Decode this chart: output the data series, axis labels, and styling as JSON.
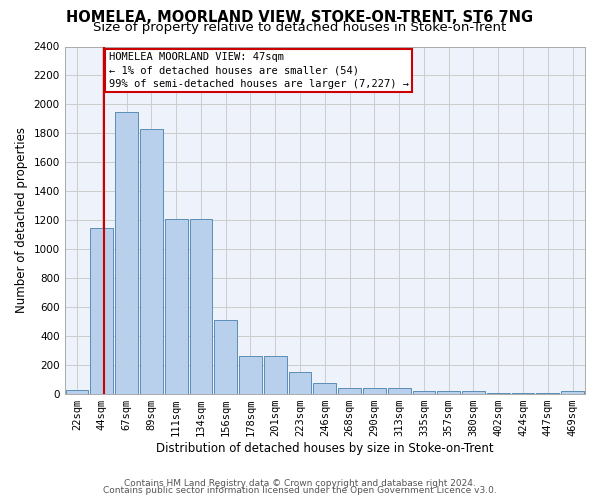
{
  "title1": "HOMELEA, MOORLAND VIEW, STOKE-ON-TRENT, ST6 7NG",
  "title2": "Size of property relative to detached houses in Stoke-on-Trent",
  "xlabel": "Distribution of detached houses by size in Stoke-on-Trent",
  "ylabel": "Number of detached properties",
  "categories": [
    "22sqm",
    "44sqm",
    "67sqm",
    "89sqm",
    "111sqm",
    "134sqm",
    "156sqm",
    "178sqm",
    "201sqm",
    "223sqm",
    "246sqm",
    "268sqm",
    "290sqm",
    "313sqm",
    "335sqm",
    "357sqm",
    "380sqm",
    "402sqm",
    "424sqm",
    "447sqm",
    "469sqm"
  ],
  "values": [
    30,
    1150,
    1950,
    1830,
    1210,
    1210,
    510,
    265,
    265,
    155,
    75,
    45,
    40,
    40,
    18,
    18,
    20,
    8,
    8,
    5,
    22
  ],
  "bar_color": "#b8d0eb",
  "bar_edge_color": "#5b8db8",
  "annotation_box_text": "HOMELEA MOORLAND VIEW: 47sqm\n← 1% of detached houses are smaller (54)\n99% of semi-detached houses are larger (7,227) →",
  "annotation_box_color": "#cc0000",
  "annotation_line_color": "#cc0000",
  "ylim": [
    0,
    2400
  ],
  "yticks": [
    0,
    200,
    400,
    600,
    800,
    1000,
    1200,
    1400,
    1600,
    1800,
    2000,
    2200,
    2400
  ],
  "grid_color": "#cccccc",
  "bg_color": "#eef2fb",
  "footer1": "Contains HM Land Registry data © Crown copyright and database right 2024.",
  "footer2": "Contains public sector information licensed under the Open Government Licence v3.0.",
  "title1_fontsize": 10.5,
  "title2_fontsize": 9.5,
  "xlabel_fontsize": 8.5,
  "ylabel_fontsize": 8.5,
  "tick_fontsize": 7.5,
  "footer_fontsize": 6.5,
  "annotation_fontsize": 7.5,
  "line_x_index": 1.09
}
